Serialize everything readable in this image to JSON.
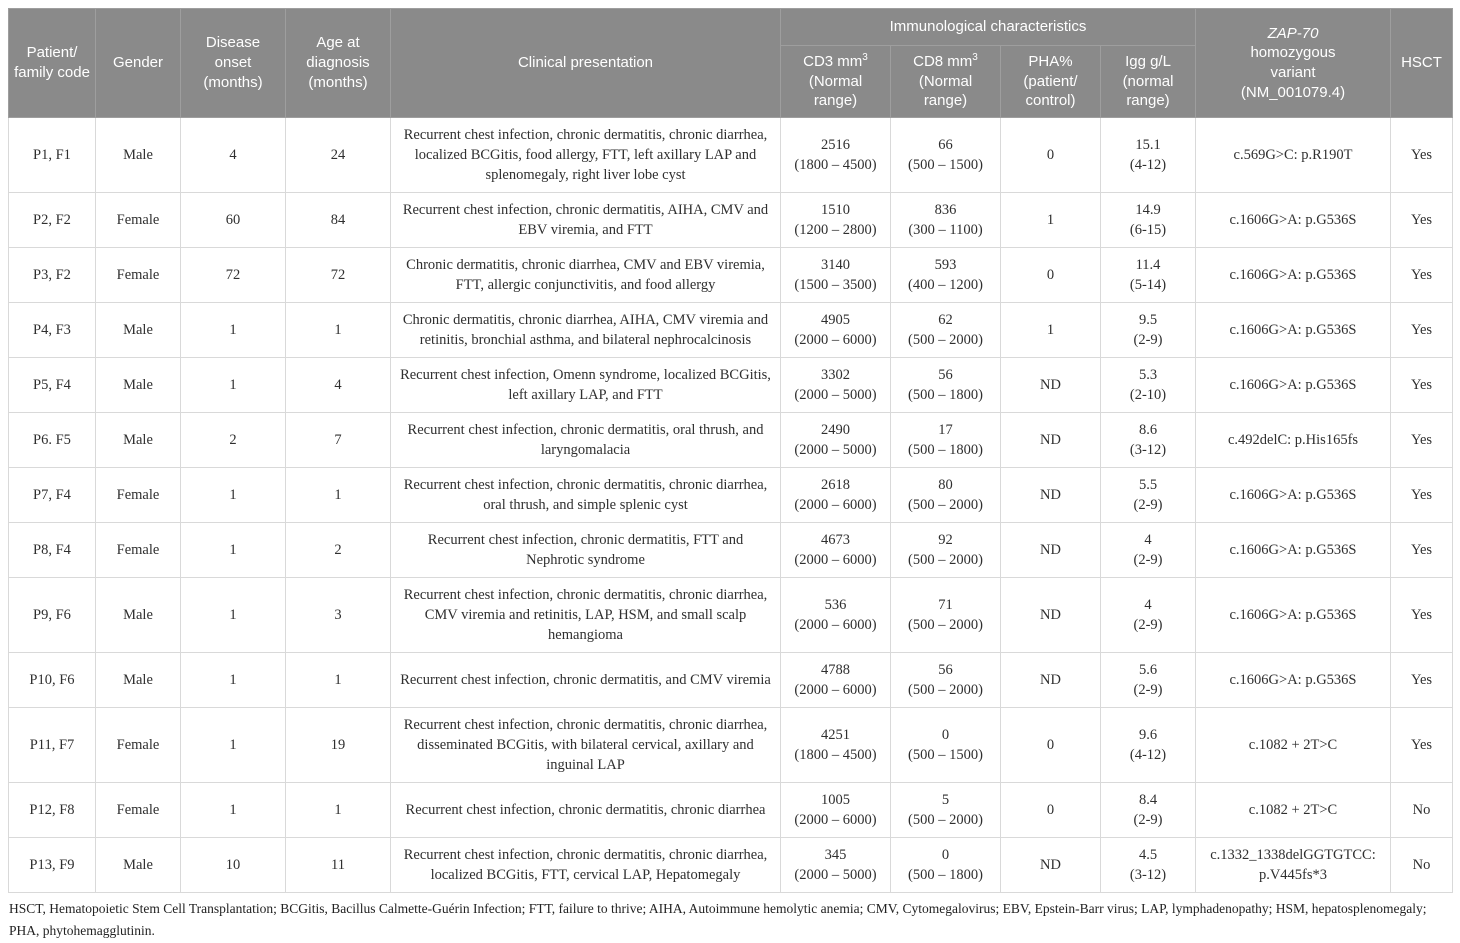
{
  "colors": {
    "header_bg": "#8a8a8a",
    "header_text": "#ffffff",
    "grid_line": "#d9d9d9",
    "body_text": "#2f2f2f"
  },
  "header": {
    "patient_code": "Patient/ family code",
    "gender": "Gender",
    "disease_onset": "Disease onset (months)",
    "age_at_diagnosis": "Age at diagnosis (months)",
    "clinical": "Clinical presentation",
    "immuno_group": "Immunological characteristics",
    "cd3": {
      "main": "CD3 mm",
      "sup": "3",
      "range": "(Normal range)"
    },
    "cd8": {
      "main": "CD8 mm",
      "sup": "3",
      "range": "(Normal range)"
    },
    "pha": {
      "main": "PHA%",
      "range": "(patient/ control)"
    },
    "igg": {
      "main": "Igg g/L",
      "range": "(normal range)"
    },
    "zap": {
      "gene": "ZAP-70",
      "line2": "homozygous",
      "line3": "variant",
      "line4": "(NM_001079.4)"
    },
    "hsct": "HSCT"
  },
  "rows": [
    {
      "code": "P1, F1",
      "gender": "Male",
      "onset": "4",
      "age": "24",
      "clinical": "Recurrent chest infection, chronic dermatitis, chronic diarrhea, localized BCGitis, food allergy, FTT, left axillary LAP and splenomegaly, right liver lobe cyst",
      "cd3_v": "2516",
      "cd3_r": "(1800 – 4500)",
      "cd8_v": "66",
      "cd8_r": "(500 – 1500)",
      "pha": "0",
      "igg_v": "15.1",
      "igg_r": "(4-12)",
      "variant": "c.569G>C: p.R190T",
      "hsct": "Yes"
    },
    {
      "code": "P2, F2",
      "gender": "Female",
      "onset": "60",
      "age": "84",
      "clinical": "Recurrent chest infection, chronic dermatitis, AIHA, CMV and EBV viremia, and FTT",
      "cd3_v": "1510",
      "cd3_r": "(1200 – 2800)",
      "cd8_v": "836",
      "cd8_r": "(300 – 1100)",
      "pha": "1",
      "igg_v": "14.9",
      "igg_r": "(6-15)",
      "variant": "c.1606G>A: p.G536S",
      "hsct": "Yes"
    },
    {
      "code": "P3, F2",
      "gender": "Female",
      "onset": "72",
      "age": "72",
      "clinical": "Chronic dermatitis, chronic diarrhea, CMV and EBV viremia, FTT, allergic conjunctivitis, and food allergy",
      "cd3_v": "3140",
      "cd3_r": "(1500 – 3500)",
      "cd8_v": "593",
      "cd8_r": "(400 – 1200)",
      "pha": "0",
      "igg_v": "11.4",
      "igg_r": "(5-14)",
      "variant": "c.1606G>A: p.G536S",
      "hsct": "Yes"
    },
    {
      "code": "P4, F3",
      "gender": "Male",
      "onset": "1",
      "age": "1",
      "clinical": "Chronic dermatitis, chronic diarrhea, AIHA, CMV viremia and retinitis, bronchial asthma, and bilateral nephrocalcinosis",
      "cd3_v": "4905",
      "cd3_r": "(2000 – 6000)",
      "cd8_v": "62",
      "cd8_r": "(500 – 2000)",
      "pha": "1",
      "igg_v": "9.5",
      "igg_r": "(2-9)",
      "variant": "c.1606G>A: p.G536S",
      "hsct": "Yes"
    },
    {
      "code": "P5, F4",
      "gender": "Male",
      "onset": "1",
      "age": "4",
      "clinical": "Recurrent chest infection, Omenn syndrome, localized BCGitis, left axillary LAP, and FTT",
      "cd3_v": "3302",
      "cd3_r": "(2000 – 5000)",
      "cd8_v": "56",
      "cd8_r": "(500 – 1800)",
      "pha": "ND",
      "igg_v": "5.3",
      "igg_r": "(2-10)",
      "variant": "c.1606G>A: p.G536S",
      "hsct": "Yes"
    },
    {
      "code": "P6. F5",
      "gender": "Male",
      "onset": "2",
      "age": "7",
      "clinical": "Recurrent chest infection, chronic dermatitis, oral thrush, and laryngomalacia",
      "cd3_v": "2490",
      "cd3_r": "(2000 – 5000)",
      "cd8_v": "17",
      "cd8_r": "(500 – 1800)",
      "pha": "ND",
      "igg_v": "8.6",
      "igg_r": "(3-12)",
      "variant": "c.492delC: p.His165fs",
      "hsct": "Yes"
    },
    {
      "code": "P7, F4",
      "gender": "Female",
      "onset": "1",
      "age": "1",
      "clinical": "Recurrent chest infection, chronic dermatitis, chronic diarrhea, oral thrush, and simple splenic cyst",
      "cd3_v": "2618",
      "cd3_r": "(2000 – 6000)",
      "cd8_v": "80",
      "cd8_r": "(500 – 2000)",
      "pha": "ND",
      "igg_v": "5.5",
      "igg_r": "(2-9)",
      "variant": "c.1606G>A: p.G536S",
      "hsct": "Yes"
    },
    {
      "code": "P8, F4",
      "gender": "Female",
      "onset": "1",
      "age": "2",
      "clinical": "Recurrent chest infection, chronic dermatitis, FTT and Nephrotic syndrome",
      "cd3_v": "4673",
      "cd3_r": "(2000 – 6000)",
      "cd8_v": "92",
      "cd8_r": "(500 – 2000)",
      "pha": "ND",
      "igg_v": "4",
      "igg_r": "(2-9)",
      "variant": "c.1606G>A: p.G536S",
      "hsct": "Yes"
    },
    {
      "code": "P9, F6",
      "gender": "Male",
      "onset": "1",
      "age": "3",
      "clinical": "Recurrent chest infection, chronic dermatitis, chronic diarrhea, CMV viremia and retinitis, LAP, HSM, and small scalp hemangioma",
      "cd3_v": "536",
      "cd3_r": "(2000 – 6000)",
      "cd8_v": "71",
      "cd8_r": "(500 – 2000)",
      "pha": "ND",
      "igg_v": "4",
      "igg_r": "(2-9)",
      "variant": "c.1606G>A: p.G536S",
      "hsct": "Yes"
    },
    {
      "code": "P10, F6",
      "gender": "Male",
      "onset": "1",
      "age": "1",
      "clinical": "Recurrent chest infection, chronic dermatitis, and CMV viremia",
      "cd3_v": "4788",
      "cd3_r": "(2000 – 6000)",
      "cd8_v": "56",
      "cd8_r": "(500 – 2000)",
      "pha": "ND",
      "igg_v": "5.6",
      "igg_r": "(2-9)",
      "variant": "c.1606G>A: p.G536S",
      "hsct": "Yes"
    },
    {
      "code": "P11, F7",
      "gender": "Female",
      "onset": "1",
      "age": "19",
      "clinical": "Recurrent chest infection, chronic dermatitis, chronic diarrhea, disseminated BCGitis, with bilateral cervical, axillary and inguinal LAP",
      "cd3_v": "4251",
      "cd3_r": "(1800 – 4500)",
      "cd8_v": "0",
      "cd8_r": "(500 – 1500)",
      "pha": "0",
      "igg_v": "9.6",
      "igg_r": "(4-12)",
      "variant": "c.1082 + 2T>C",
      "hsct": "Yes"
    },
    {
      "code": "P12, F8",
      "gender": "Female",
      "onset": "1",
      "age": "1",
      "clinical": "Recurrent chest infection, chronic dermatitis, chronic diarrhea",
      "cd3_v": "1005",
      "cd3_r": "(2000 – 6000)",
      "cd8_v": "5",
      "cd8_r": "(500 – 2000)",
      "pha": "0",
      "igg_v": "8.4",
      "igg_r": "(2-9)",
      "variant": "c.1082 + 2T>C",
      "hsct": "No"
    },
    {
      "code": "P13, F9",
      "gender": "Male",
      "onset": "10",
      "age": "11",
      "clinical": "Recurrent chest infection, chronic dermatitis, chronic diarrhea, localized BCGitis, FTT, cervical LAP, Hepatomegaly",
      "cd3_v": "345",
      "cd3_r": "(2000 – 5000)",
      "cd8_v": "0",
      "cd8_r": "(500 – 1800)",
      "pha": "ND",
      "igg_v": "4.5",
      "igg_r": "(3-12)",
      "variant": "c.1332_1338delGGTGTCC: p.V445fs*3",
      "hsct": "No"
    }
  ],
  "footnote": "HSCT, Hematopoietic Stem Cell Transplantation; BCGitis, Bacillus Calmette-Guérin Infection; FTT, failure to thrive; AIHA, Autoimmune hemolytic anemia; CMV, Cytomegalovirus; EBV, Epstein-Barr virus; LAP, lymphadenopathy; HSM, hepatosplenomegaly; PHA, phytohemagglutinin."
}
